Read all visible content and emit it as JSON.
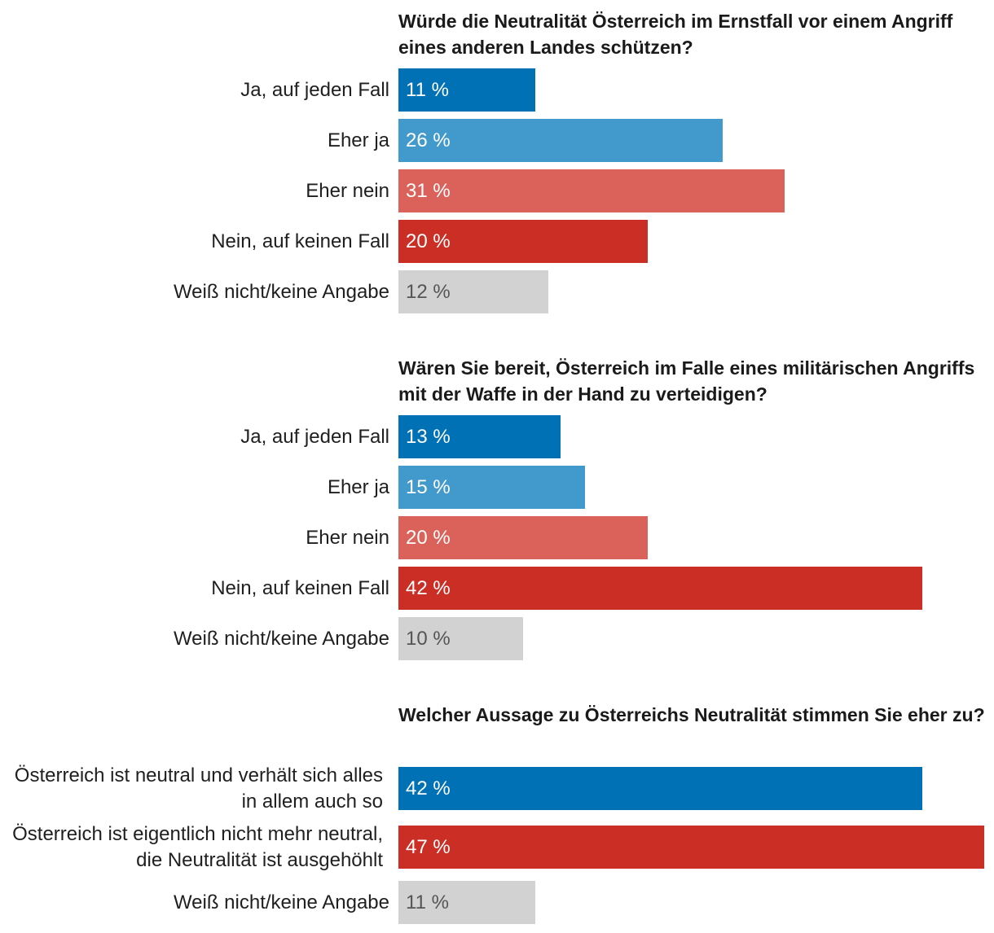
{
  "colors": {
    "dark_blue": "#0071b5",
    "light_blue": "#4299cc",
    "light_red": "#db625a",
    "dark_red": "#ca2e25",
    "gray": "#d2d2d2"
  },
  "chart_data": [
    {
      "type": "bar",
      "orientation": "horizontal",
      "title": "Würde die Neutralität Österreich im Ernstfall vor einem Angriff eines anderen Landes schützen?",
      "unit": "%",
      "categories": [
        "Ja, auf jeden Fall",
        "Eher ja",
        "Eher nein",
        "Nein, auf keinen Fall",
        "Weiß nicht/keine Angabe"
      ],
      "values": [
        11,
        26,
        31,
        20,
        12
      ],
      "labels": [
        "11 %",
        "26 %",
        "31 %",
        "20 %",
        "12 %"
      ],
      "colors": [
        "dark_blue",
        "light_blue",
        "light_red",
        "dark_red",
        "gray"
      ],
      "xlim": [
        0,
        47
      ]
    },
    {
      "type": "bar",
      "orientation": "horizontal",
      "title": "Wären Sie bereit, Österreich im Falle eines militärischen Angriffs mit der Waffe in der Hand zu verteidigen?",
      "unit": "%",
      "categories": [
        "Ja, auf jeden Fall",
        "Eher ja",
        "Eher nein",
        "Nein, auf keinen Fall",
        "Weiß nicht/keine Angabe"
      ],
      "values": [
        13,
        15,
        20,
        42,
        10
      ],
      "labels": [
        "13 %",
        "15 %",
        "20 %",
        "42 %",
        "10 %"
      ],
      "colors": [
        "dark_blue",
        "light_blue",
        "light_red",
        "dark_red",
        "gray"
      ],
      "xlim": [
        0,
        47
      ]
    },
    {
      "type": "bar",
      "orientation": "horizontal",
      "title": "Welcher Aussage zu Österreichs Neutralität stimmen Sie eher zu?",
      "unit": "%",
      "categories": [
        "Österreich ist neutral und verhält sich alles in allem auch so",
        "Österreich ist eigentlich nicht mehr neutral, die Neutralität ist ausgehöhlt",
        "Weiß nicht/keine Angabe"
      ],
      "values": [
        42,
        47,
        11
      ],
      "labels": [
        "42 %",
        "47 %",
        "11 %"
      ],
      "colors": [
        "dark_blue",
        "dark_red",
        "gray"
      ],
      "xlim": [
        0,
        47
      ]
    }
  ]
}
